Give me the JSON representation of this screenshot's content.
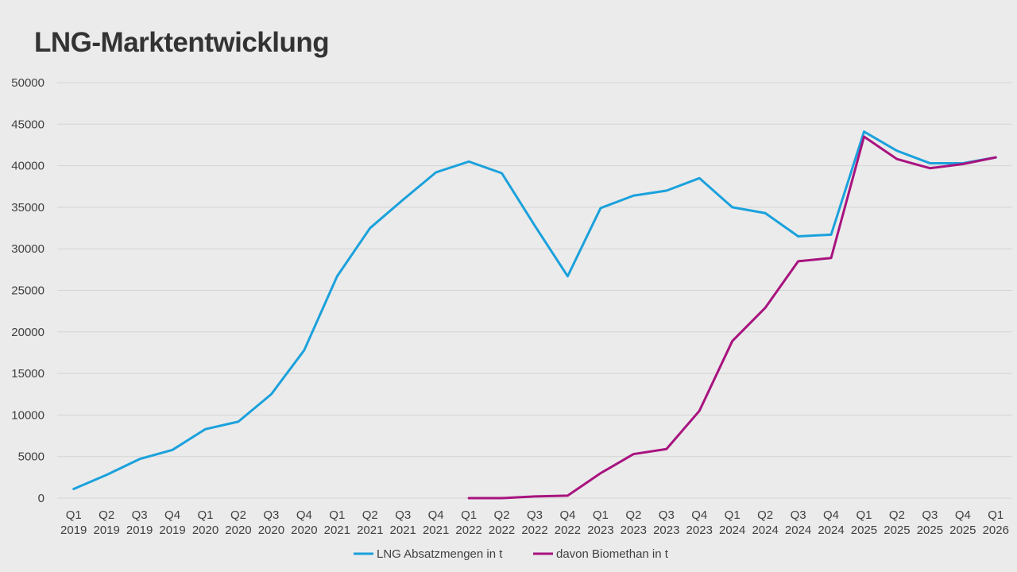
{
  "title": "LNG-Marktentwicklung",
  "chart_data": {
    "type": "line",
    "title": "LNG-Marktentwicklung",
    "xlabel": "",
    "ylabel": "",
    "ylim": [
      0,
      50000
    ],
    "yticks": [
      0,
      5000,
      10000,
      15000,
      20000,
      25000,
      30000,
      35000,
      40000,
      45000,
      50000
    ],
    "grid": true,
    "legend_position": "bottom",
    "categories": [
      [
        "Q1",
        "2019"
      ],
      [
        "Q2",
        "2019"
      ],
      [
        "Q3",
        "2019"
      ],
      [
        "Q4",
        "2019"
      ],
      [
        "Q1",
        "2020"
      ],
      [
        "Q2",
        "2020"
      ],
      [
        "Q3",
        "2020"
      ],
      [
        "Q4",
        "2020"
      ],
      [
        "Q1",
        "2021"
      ],
      [
        "Q2",
        "2021"
      ],
      [
        "Q3",
        "2021"
      ],
      [
        "Q4",
        "2021"
      ],
      [
        "Q1",
        "2022"
      ],
      [
        "Q2",
        "2022"
      ],
      [
        "Q3",
        "2022"
      ],
      [
        "Q4",
        "2022"
      ],
      [
        "Q1",
        "2023"
      ],
      [
        "Q2",
        "2023"
      ],
      [
        "Q3",
        "2023"
      ],
      [
        "Q4",
        "2023"
      ],
      [
        "Q1",
        "2024"
      ],
      [
        "Q2",
        "2024"
      ],
      [
        "Q3",
        "2024"
      ],
      [
        "Q4",
        "2024"
      ],
      [
        "Q1",
        "2025"
      ],
      [
        "Q2",
        "2025"
      ],
      [
        "Q3",
        "2025"
      ],
      [
        "Q4",
        "2025"
      ],
      [
        "Q1",
        "2026"
      ]
    ],
    "series": [
      {
        "name": "LNG Absatzmengen in t",
        "color": "#1ba1dc",
        "values": [
          1100,
          2800,
          4700,
          5800,
          8300,
          9200,
          12500,
          17800,
          26700,
          32500,
          35900,
          39200,
          40500,
          39100,
          32800,
          26700,
          34900,
          36400,
          37000,
          38500,
          35000,
          34300,
          31500,
          31700,
          44100,
          41800,
          40300,
          40300,
          41000
        ]
      },
      {
        "name": "davon Biomethan in t",
        "color": "#a8137f",
        "values": [
          null,
          null,
          null,
          null,
          null,
          null,
          null,
          null,
          null,
          null,
          null,
          null,
          0,
          0,
          200,
          300,
          3000,
          5300,
          5900,
          10500,
          18900,
          22900,
          28500,
          28900,
          43500,
          40800,
          39700,
          40200,
          41000
        ]
      }
    ]
  }
}
